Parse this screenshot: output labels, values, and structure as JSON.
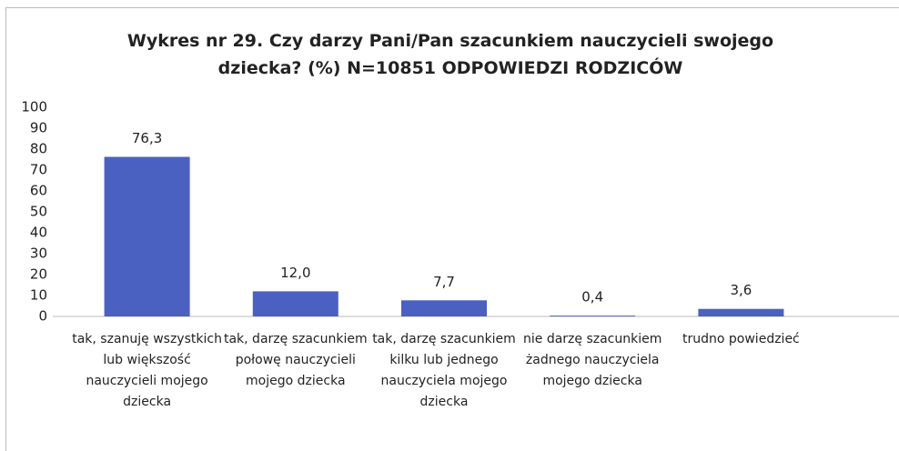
{
  "chart_data": {
    "type": "bar",
    "title": "Wykres nr 29. Czy darzy Pani/Pan szacunkiem nauczycieli swojego dziecka? (%) N=10851 ODPOWIEDZI RODZICÓW",
    "categories": [
      "tak, szanuję wszystkich lub większość nauczycieli mojego dziecka",
      "tak, darzę szacunkiem połowę nauczycieli mojego dziecka",
      "tak, darzę szacunkiem kilku lub jednego nauczyciela mojego dziecka",
      "nie darzę szacunkiem żadnego nauczyciela mojego dziecka",
      "trudno powiedzieć"
    ],
    "values": [
      76.3,
      12.0,
      7.7,
      0.4,
      3.6
    ],
    "value_labels": [
      "76,3",
      "12,0",
      "7,7",
      "0,4",
      "3,6"
    ],
    "color": "#4a61c2",
    "ylim": [
      0,
      100
    ],
    "yticks": [
      0,
      10,
      20,
      30,
      40,
      50,
      60,
      70,
      80,
      90,
      100
    ],
    "grid": false
  }
}
